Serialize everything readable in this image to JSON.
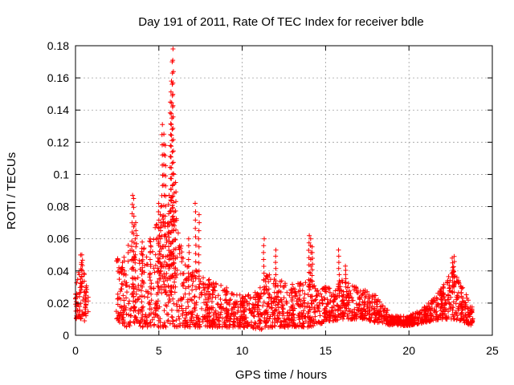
{
  "chart_data": {
    "type": "scatter",
    "title": "Day 191 of 2011, Rate Of TEC Index for receiver bdle",
    "xlabel": "GPS time / hours",
    "ylabel": "ROTI / TECUs",
    "xlim": [
      0,
      25
    ],
    "ylim": [
      0,
      0.18
    ],
    "xticks": [
      0,
      5,
      10,
      15,
      20,
      25
    ],
    "xtick_labels": [
      "0",
      "5",
      "10",
      "15",
      "20",
      "25"
    ],
    "yticks": [
      0,
      0.02,
      0.04,
      0.06,
      0.08,
      0.1,
      0.12,
      0.14,
      0.16,
      0.18
    ],
    "ytick_labels": [
      "0",
      "0.02",
      "0.04",
      "0.06",
      "0.08",
      "0.1",
      "0.12",
      "0.14",
      "0.16",
      "0.18"
    ],
    "grid": true,
    "marker": "+",
    "color": "#ff0000",
    "series": [
      {
        "name": "ROTI",
        "envelope": [
          [
            0.0,
            0.01,
            0.028
          ],
          [
            0.3,
            0.01,
            0.05
          ],
          [
            0.7,
            0.008,
            0.03
          ],
          [
            2.5,
            0.01,
            0.058
          ],
          [
            2.8,
            0.005,
            0.045
          ],
          [
            3.5,
            0.005,
            0.068
          ],
          [
            4.0,
            0.005,
            0.055
          ],
          [
            4.5,
            0.005,
            0.06
          ],
          [
            5.0,
            0.005,
            0.075
          ],
          [
            5.5,
            0.005,
            0.07
          ],
          [
            5.8,
            0.005,
            0.09
          ],
          [
            6.5,
            0.005,
            0.045
          ],
          [
            7.0,
            0.005,
            0.042
          ],
          [
            8.0,
            0.005,
            0.035
          ],
          [
            9.0,
            0.005,
            0.03
          ],
          [
            10.0,
            0.005,
            0.025
          ],
          [
            11.0,
            0.003,
            0.028
          ],
          [
            11.5,
            0.005,
            0.04
          ],
          [
            12.0,
            0.005,
            0.035
          ],
          [
            13.0,
            0.005,
            0.032
          ],
          [
            14.0,
            0.005,
            0.035
          ],
          [
            15.0,
            0.008,
            0.03
          ],
          [
            16.0,
            0.01,
            0.035
          ],
          [
            17.0,
            0.01,
            0.03
          ],
          [
            18.0,
            0.008,
            0.025
          ],
          [
            19.0,
            0.006,
            0.012
          ],
          [
            20.0,
            0.006,
            0.012
          ],
          [
            21.0,
            0.008,
            0.018
          ],
          [
            22.0,
            0.01,
            0.03
          ],
          [
            22.7,
            0.01,
            0.042
          ],
          [
            23.2,
            0.008,
            0.03
          ],
          [
            23.8,
            0.006,
            0.018
          ]
        ],
        "spikes": [
          [
            0.4,
            0.05
          ],
          [
            3.4,
            0.087
          ],
          [
            3.5,
            0.085
          ],
          [
            3.6,
            0.07
          ],
          [
            4.0,
            0.058
          ],
          [
            4.5,
            0.06
          ],
          [
            5.0,
            0.082
          ],
          [
            5.1,
            0.08
          ],
          [
            5.2,
            0.131
          ],
          [
            5.3,
            0.125
          ],
          [
            5.4,
            0.118
          ],
          [
            5.6,
            0.087
          ],
          [
            5.7,
            0.145
          ],
          [
            5.75,
            0.158
          ],
          [
            5.8,
            0.17
          ],
          [
            5.85,
            0.178
          ],
          [
            5.9,
            0.1
          ],
          [
            6.0,
            0.095
          ],
          [
            6.8,
            0.06
          ],
          [
            7.2,
            0.082
          ],
          [
            7.4,
            0.075
          ],
          [
            11.3,
            0.06
          ],
          [
            12.0,
            0.053
          ],
          [
            14.0,
            0.062
          ],
          [
            14.1,
            0.06
          ],
          [
            14.2,
            0.055
          ],
          [
            15.8,
            0.053
          ],
          [
            16.2,
            0.043
          ],
          [
            22.6,
            0.048
          ],
          [
            22.7,
            0.049
          ]
        ]
      }
    ]
  }
}
